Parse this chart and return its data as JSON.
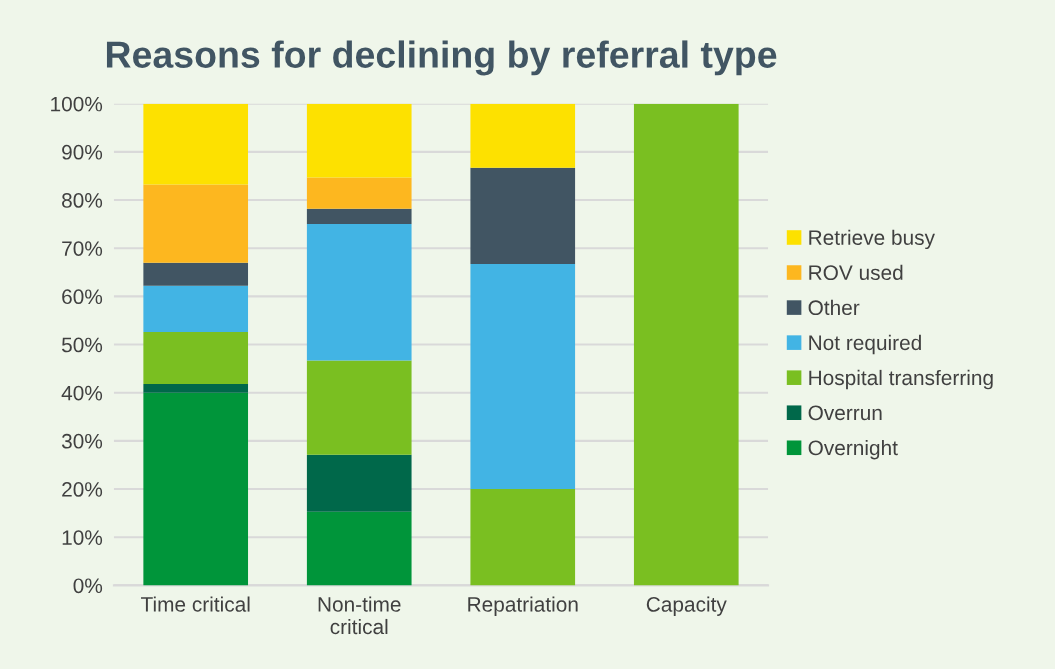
{
  "chart_data": {
    "type": "bar",
    "title": "Reasons for declining by referral type",
    "stacked": true,
    "categories": [
      "Time critical",
      "Non-time\ncritical",
      "Repatriation",
      "Capacity"
    ],
    "series": [
      {
        "name": "Overnight",
        "color": "#00953a",
        "values": [
          40,
          15.3,
          0,
          0
        ]
      },
      {
        "name": "Overrun",
        "color": "#00684a",
        "values": [
          1.8,
          11.8,
          0,
          0
        ]
      },
      {
        "name": "Hospital transferring",
        "color": "#7abf21",
        "values": [
          10.8,
          19.6,
          20,
          100
        ]
      },
      {
        "name": "Not required",
        "color": "#42b4e4",
        "values": [
          9.6,
          28.3,
          46.7,
          0
        ]
      },
      {
        "name": "Other",
        "color": "#415563",
        "values": [
          4.8,
          3.2,
          20,
          0
        ]
      },
      {
        "name": "ROV used",
        "color": "#fdb71f",
        "values": [
          16.2,
          6.5,
          0,
          0
        ]
      },
      {
        "name": "Retrieve busy",
        "color": "#fde100",
        "values": [
          16.8,
          15.3,
          13.3,
          0
        ]
      }
    ],
    "ylim": [
      0,
      100
    ],
    "yticks": [
      {
        "value": 0,
        "label": "0%"
      },
      {
        "value": 10,
        "label": "10%"
      },
      {
        "value": 20,
        "label": "20%"
      },
      {
        "value": 30,
        "label": "30%"
      },
      {
        "value": 40,
        "label": "40%"
      },
      {
        "value": 50,
        "label": "50%"
      },
      {
        "value": 60,
        "label": "60%"
      },
      {
        "value": 70,
        "label": "70%"
      },
      {
        "value": 80,
        "label": "80%"
      },
      {
        "value": 90,
        "label": "90%"
      },
      {
        "value": 100,
        "label": "100%"
      }
    ],
    "grid": "y",
    "legend": "right"
  }
}
